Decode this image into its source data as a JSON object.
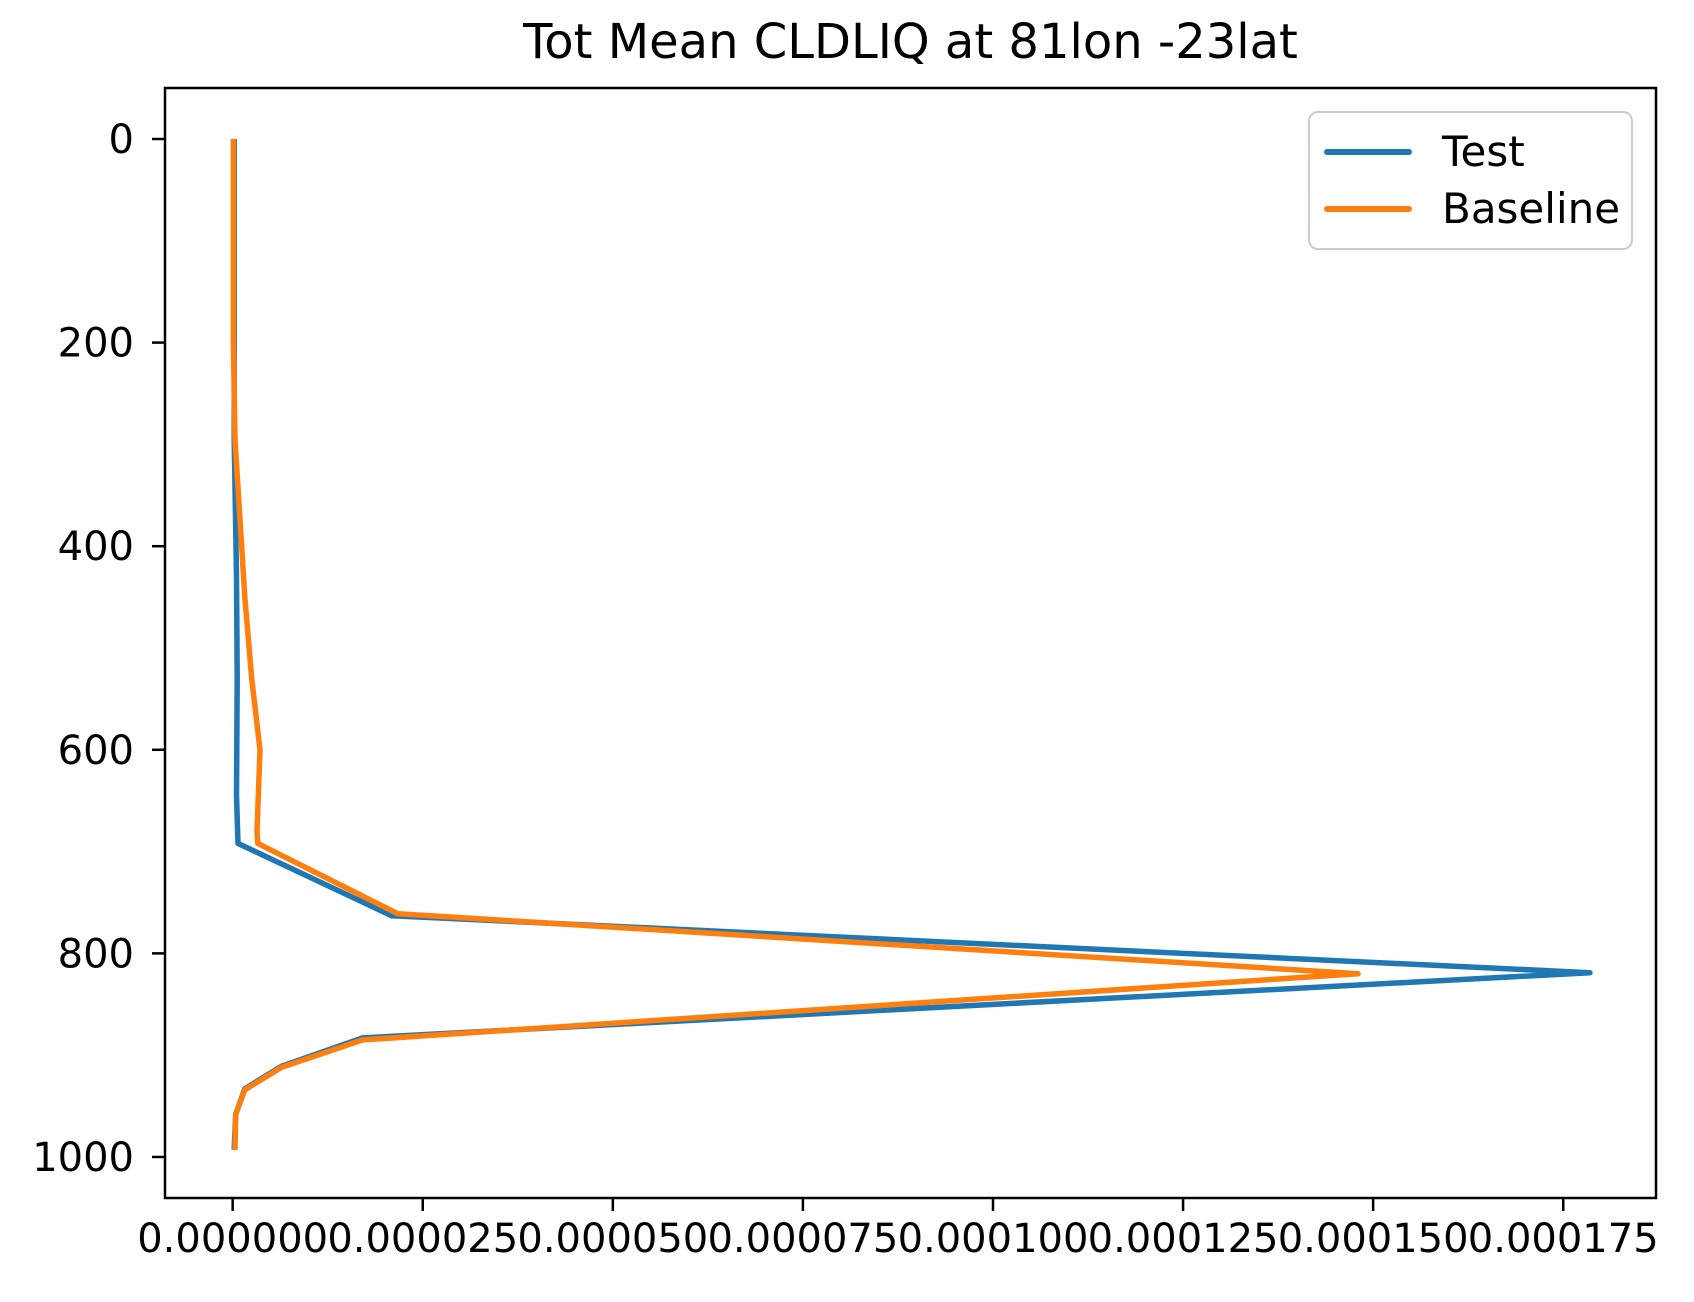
{
  "chart_data": {
    "type": "line",
    "title": "Tot Mean CLDLIQ at 81lon -23lat",
    "xlabel": "",
    "ylabel": "",
    "x_axis": {
      "tick_values": [
        0.0,
        2.5e-05,
        5e-05,
        7.5e-05,
        0.0001,
        0.000125,
        0.00015,
        0.000175
      ],
      "tick_labels": [
        "0.000000",
        "0.000025",
        "0.000050",
        "0.000075",
        "0.000100",
        "0.000125",
        "0.000150",
        "0.000175"
      ],
      "lim": [
        -8.9e-06,
        0.0001872
      ]
    },
    "y_axis": {
      "tick_values": [
        0,
        200,
        400,
        600,
        800,
        1000
      ],
      "tick_labels": [
        "0",
        "200",
        "400",
        "600",
        "800",
        "1000"
      ],
      "lim": [
        -50.1,
        1040.3
      ],
      "inverted": true
    },
    "grid": false,
    "legend": {
      "position": "upper right",
      "entries": [
        "Test",
        "Baseline"
      ]
    },
    "series": [
      {
        "name": "Test",
        "color": "#1f77b4",
        "points": [
          [
            2e-07,
            0
          ],
          [
            2e-07,
            200
          ],
          [
            2e-07,
            295
          ],
          [
            5e-07,
            430
          ],
          [
            6e-07,
            530
          ],
          [
            5e-07,
            645
          ],
          [
            7e-07,
            692
          ],
          [
            2.09e-05,
            763
          ],
          [
            0.0001785,
            819
          ],
          [
            1.71e-05,
            883
          ],
          [
            6.4e-06,
            911
          ],
          [
            1.6e-06,
            933
          ],
          [
            4e-07,
            958
          ],
          [
            2e-07,
            993
          ]
        ]
      },
      {
        "name": "Baseline",
        "color": "#ff7f0e",
        "points": [
          [
            1e-07,
            0
          ],
          [
            1e-07,
            200
          ],
          [
            3e-07,
            295
          ],
          [
            1.6e-06,
            450
          ],
          [
            2.5e-06,
            530
          ],
          [
            3.6e-06,
            600
          ],
          [
            3.2e-06,
            680
          ],
          [
            3.3e-06,
            692
          ],
          [
            2.17e-05,
            761
          ],
          [
            0.000148,
            820
          ],
          [
            1.71e-05,
            885
          ],
          [
            6.4e-06,
            912
          ],
          [
            1.6e-06,
            934
          ],
          [
            4e-07,
            958
          ],
          [
            3e-07,
            993
          ]
        ]
      }
    ]
  }
}
